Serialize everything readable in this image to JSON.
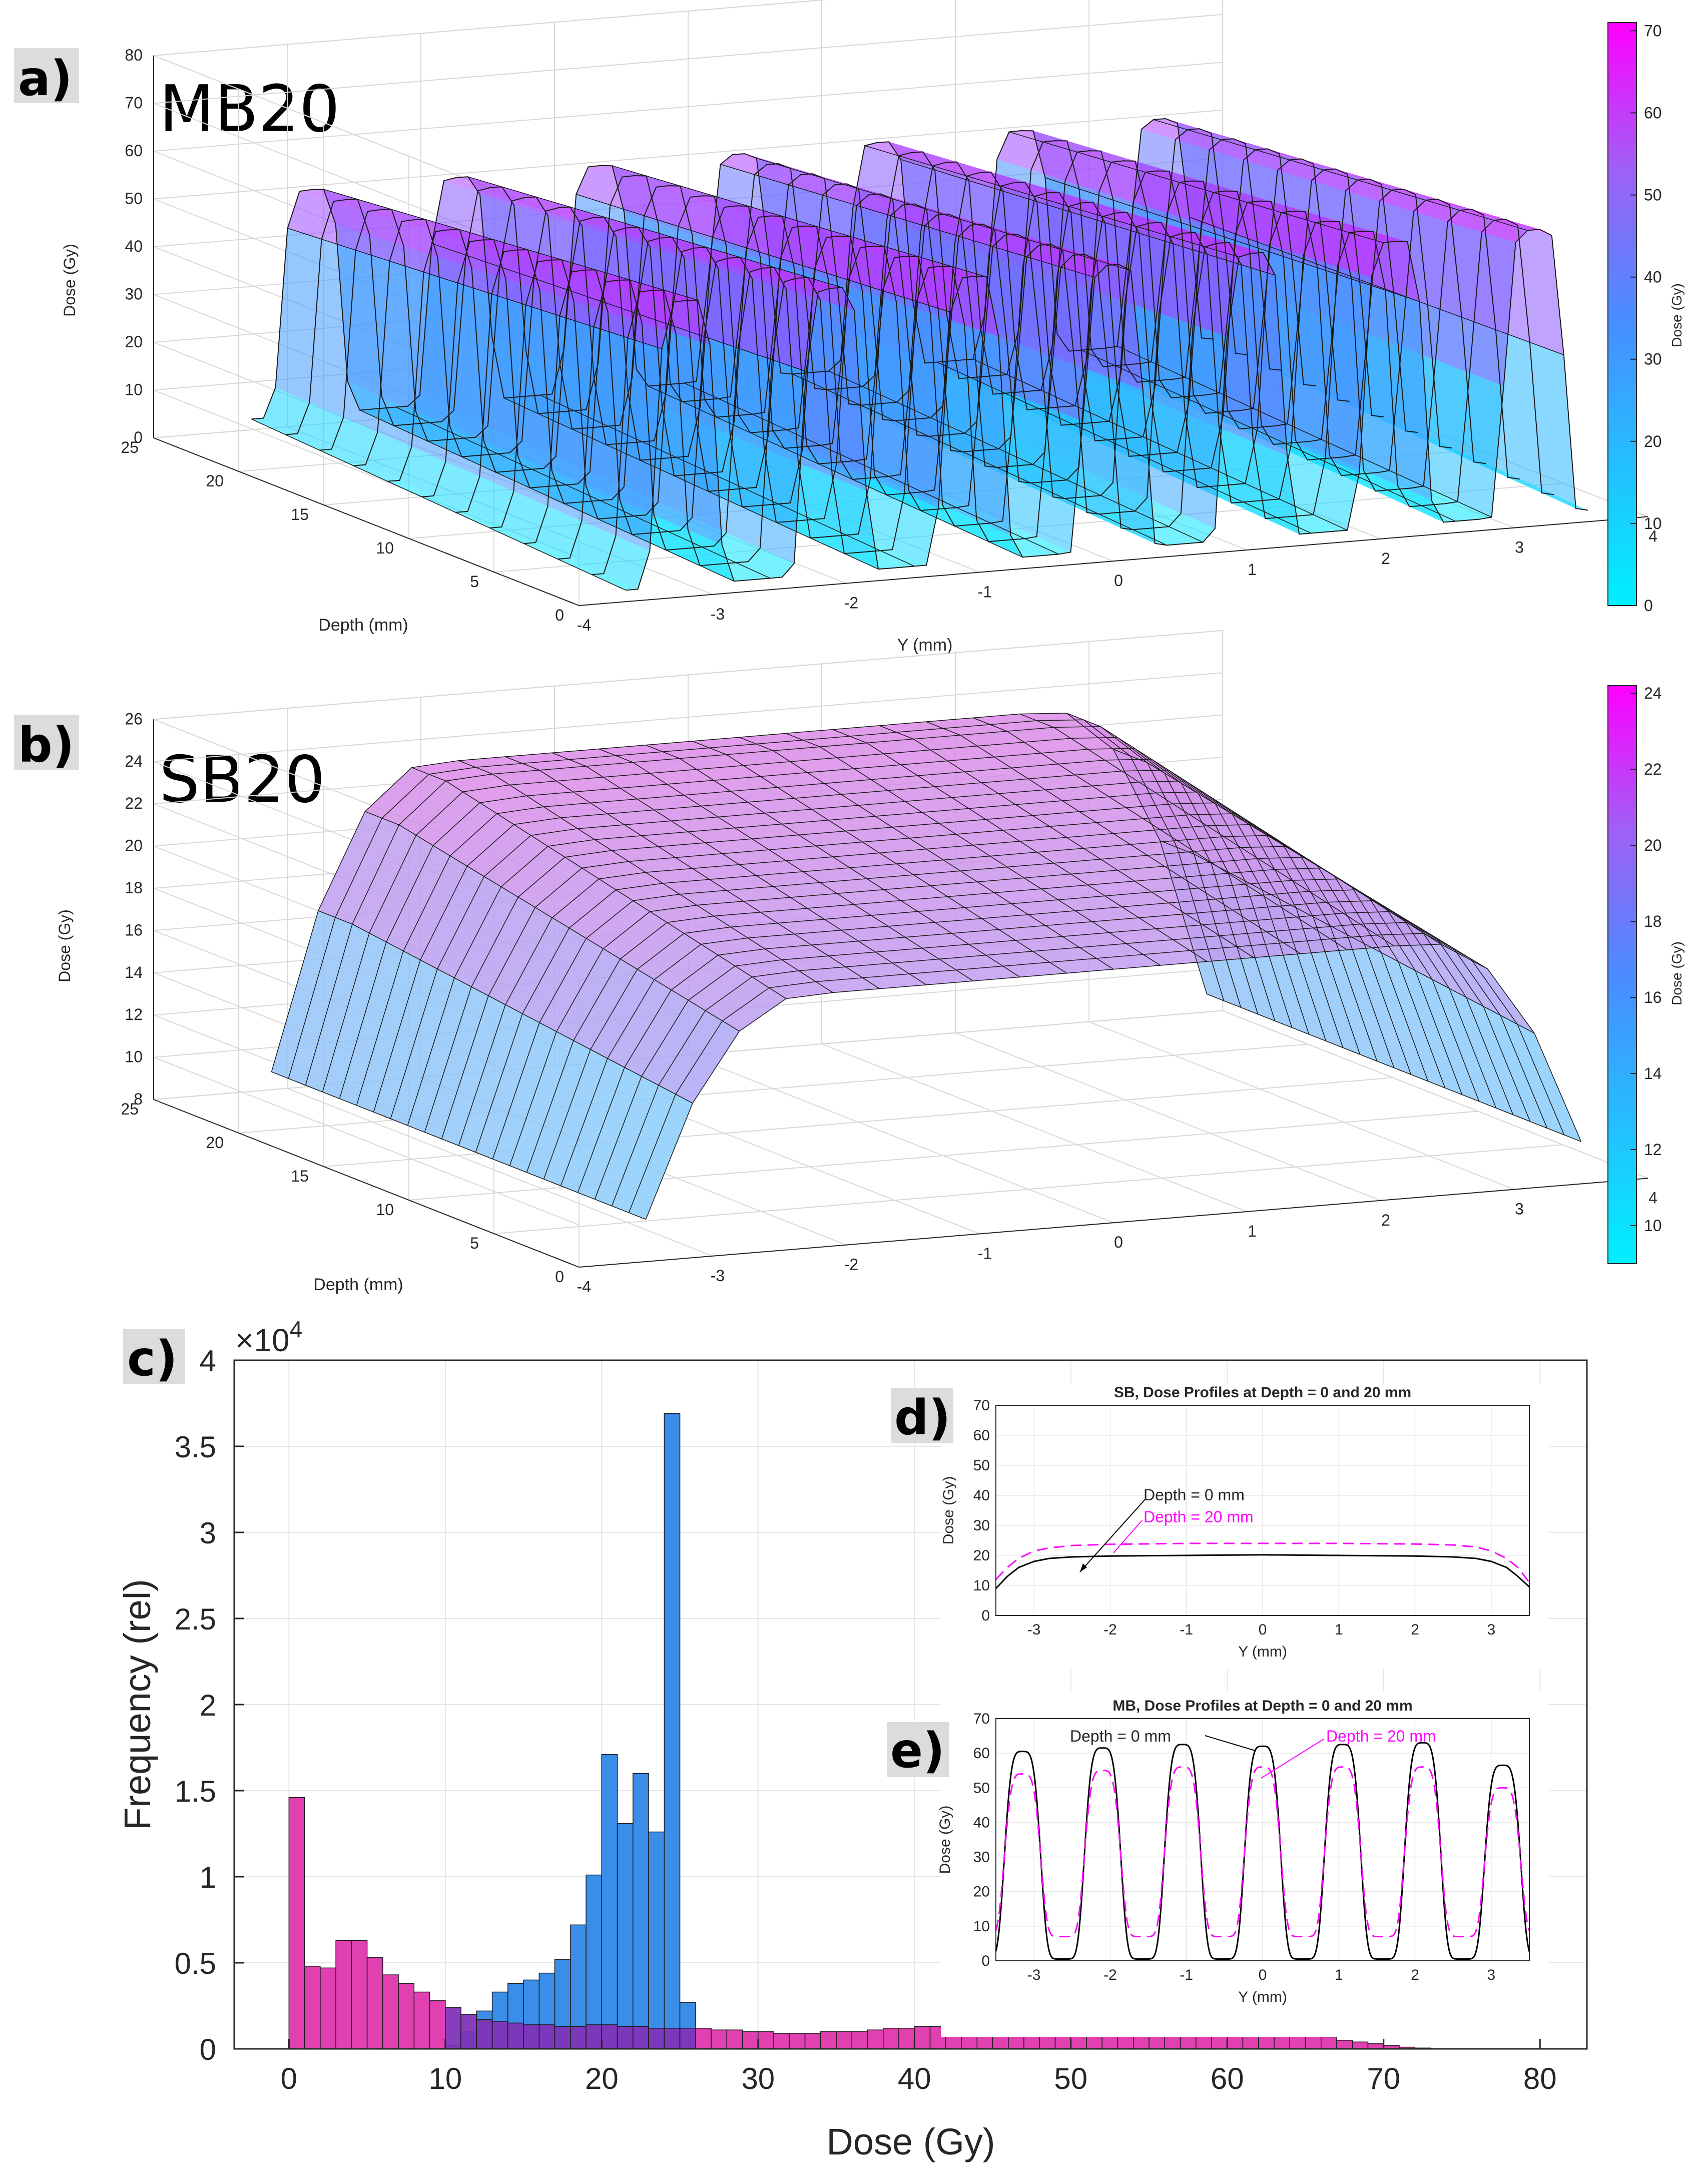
{
  "panels": {
    "a": {
      "label": "a)",
      "title": "MB20"
    },
    "b": {
      "label": "b)",
      "title": "SB20"
    },
    "c": {
      "label": "c)"
    },
    "d": {
      "label": "d)"
    },
    "e": {
      "label": "e)"
    }
  },
  "colors": {
    "low": "#00f0ff",
    "mid": "#3d8bff",
    "high": "#ff00ff",
    "hist_mb": "#e040b0",
    "hist_sb": "#3a8ee8",
    "overlap": "#7f34b8"
  },
  "chart_data": [
    {
      "id": "a",
      "type": "surface3d",
      "title": "MB20",
      "zlabel": "Dose (Gy)",
      "xlabel": "Depth (mm)",
      "ylabel": "Y (mm)",
      "ztick_labels": [
        "0",
        "10",
        "20",
        "30",
        "40",
        "50",
        "60",
        "70",
        "80"
      ],
      "depth_tick_labels": [
        "0",
        "5",
        "10",
        "15",
        "20",
        "25"
      ],
      "y_tick_labels": [
        "-4",
        "-3",
        "-2",
        "-1",
        "0",
        "1",
        "2",
        "3",
        "4"
      ],
      "colorbar": {
        "label": "Dose (Gy)",
        "range": [
          0,
          71
        ],
        "tick_labels": [
          "0",
          "10",
          "20",
          "30",
          "40",
          "50",
          "60",
          "70"
        ]
      },
      "peaks_y_mm": [
        -3.2,
        -2.1,
        -1.05,
        0,
        1.05,
        2.1,
        3.15
      ],
      "peak_dose_depth0": 62,
      "peak_dose_depth20": 55,
      "valley_dose": 8
    },
    {
      "id": "b",
      "type": "surface3d",
      "title": "SB20",
      "zlabel": "Dose (Gy)",
      "xlabel": "Depth (mm)",
      "ztick_labels": [
        "8",
        "10",
        "12",
        "14",
        "16",
        "18",
        "20",
        "22",
        "24",
        "26"
      ],
      "depth_tick_labels": [
        "0",
        "5",
        "10",
        "15",
        "20",
        "25"
      ],
      "y_tick_labels": [
        "-4",
        "-3",
        "-2",
        "-1",
        "0",
        "1",
        "2",
        "3",
        "4"
      ],
      "colorbar": {
        "label": "Dose (Gy)",
        "range": [
          9,
          24.2
        ],
        "tick_labels": [
          "10",
          "12",
          "14",
          "16",
          "18",
          "20",
          "22",
          "24"
        ]
      },
      "plateau_dose_depth0": 20,
      "plateau_dose_depth20": 24,
      "edge_dose": 10
    },
    {
      "id": "c",
      "type": "bar",
      "xlabel": "Dose (Gy)",
      "ylabel": "Frequency (rel)",
      "yexp": "×10",
      "yexp_power": "4",
      "xlim": [
        -3.5,
        83
      ],
      "ylim": [
        0,
        4
      ],
      "xtick_labels": [
        "0",
        "10",
        "20",
        "30",
        "40",
        "50",
        "60",
        "70",
        "80"
      ],
      "ytick_labels": [
        "0",
        "0.5",
        "1",
        "1.5",
        "2",
        "2.5",
        "3",
        "3.5",
        "4"
      ],
      "bin_width": 1,
      "series": [
        {
          "name": "MB20",
          "color": "#e040b0",
          "values": [
            1.46,
            0.48,
            0.47,
            0.63,
            0.63,
            0.53,
            0.43,
            0.38,
            0.33,
            0.28,
            0.24,
            0.2,
            0.17,
            0.16,
            0.15,
            0.14,
            0.14,
            0.13,
            0.13,
            0.14,
            0.14,
            0.13,
            0.13,
            0.12,
            0.12,
            0.12,
            0.12,
            0.11,
            0.11,
            0.1,
            0.1,
            0.09,
            0.09,
            0.09,
            0.1,
            0.1,
            0.1,
            0.11,
            0.12,
            0.12,
            0.13,
            0.13,
            0.14,
            0.14,
            0.14,
            0.14,
            0.14,
            0.14,
            0.15,
            0.15,
            0.15,
            0.16,
            0.16,
            0.16,
            0.16,
            0.16,
            0.16,
            0.16,
            0.15,
            0.15,
            0.14,
            0.13,
            0.12,
            0.11,
            0.1,
            0.09,
            0.07,
            0.05,
            0.04,
            0.03,
            0.02,
            0.01,
            0.005,
            0,
            0,
            0,
            0,
            0,
            0,
            0
          ]
        },
        {
          "name": "SB20",
          "color": "#3a8ee8",
          "values": [
            0,
            0,
            0,
            0,
            0,
            0,
            0,
            0,
            0,
            0,
            0.02,
            0.1,
            0.22,
            0.33,
            0.38,
            0.4,
            0.44,
            0.52,
            0.72,
            1.01,
            1.71,
            1.31,
            1.6,
            1.26,
            3.69,
            0.27
          ]
        }
      ]
    },
    {
      "id": "d",
      "type": "line",
      "title": "SB, Dose Profiles at Depth = 0 and 20 mm",
      "xlabel": "Y (mm)",
      "ylabel": "Dose (Gy)",
      "xlim": [
        -3.5,
        3.5
      ],
      "ylim": [
        0,
        70
      ],
      "xtick_labels": [
        "-3",
        "-2",
        "-1",
        "0",
        "1",
        "2",
        "3"
      ],
      "ytick_labels": [
        "0",
        "10",
        "20",
        "30",
        "40",
        "50",
        "60",
        "70"
      ],
      "annotations": [
        "Depth = 0 mm",
        "Depth = 20 mm"
      ],
      "series": [
        {
          "name": "Depth = 0 mm",
          "style": "solid",
          "color": "#000000",
          "x": [
            -3.5,
            -3.35,
            -3.2,
            -3.0,
            -2.8,
            -2.5,
            -2,
            -1,
            0,
            1,
            2,
            2.5,
            2.8,
            3.0,
            3.2,
            3.35,
            3.5
          ],
          "y": [
            9,
            13,
            16,
            18,
            19,
            19.5,
            19.8,
            20,
            20.2,
            20,
            19.8,
            19.5,
            19,
            18,
            16,
            13,
            9.5
          ]
        },
        {
          "name": "Depth = 20 mm",
          "style": "dashed",
          "color": "#ff00ff",
          "x": [
            -3.5,
            -3.35,
            -3.2,
            -3.0,
            -2.8,
            -2.5,
            -2,
            -1,
            0,
            1,
            2,
            2.5,
            2.8,
            3.0,
            3.2,
            3.35,
            3.5
          ],
          "y": [
            12,
            16,
            19,
            21.5,
            22.5,
            23.3,
            23.7,
            24,
            24,
            24,
            23.8,
            23.5,
            22.8,
            21.5,
            19,
            16,
            11
          ]
        }
      ]
    },
    {
      "id": "e",
      "type": "line",
      "title": "MB, Dose Profiles at Depth = 0 and 20 mm",
      "xlabel": "Y (mm)",
      "ylabel": "Dose (Gy)",
      "xlim": [
        -3.5,
        3.5
      ],
      "ylim": [
        0,
        70
      ],
      "xtick_labels": [
        "-3",
        "-2",
        "-1",
        "0",
        "1",
        "2",
        "3"
      ],
      "ytick_labels": [
        "0",
        "10",
        "20",
        "30",
        "40",
        "50",
        "60",
        "70"
      ],
      "annotations": [
        "Depth = 0 mm",
        "Depth = 20 mm"
      ],
      "peaks_y_mm": [
        -3.15,
        -2.1,
        -1.05,
        0,
        1.05,
        2.1,
        3.15
      ],
      "series": [
        {
          "name": "Depth = 0 mm",
          "style": "solid",
          "color": "#000000",
          "peak_values": [
            60.5,
            61.5,
            62.5,
            62,
            62.5,
            63,
            56.5
          ],
          "valley_value": 0.5
        },
        {
          "name": "Depth = 20 mm",
          "style": "dashed",
          "color": "#ff00ff",
          "peak_values": [
            54,
            55,
            56,
            56,
            56,
            56,
            50
          ],
          "valley_value": 7
        }
      ]
    }
  ]
}
